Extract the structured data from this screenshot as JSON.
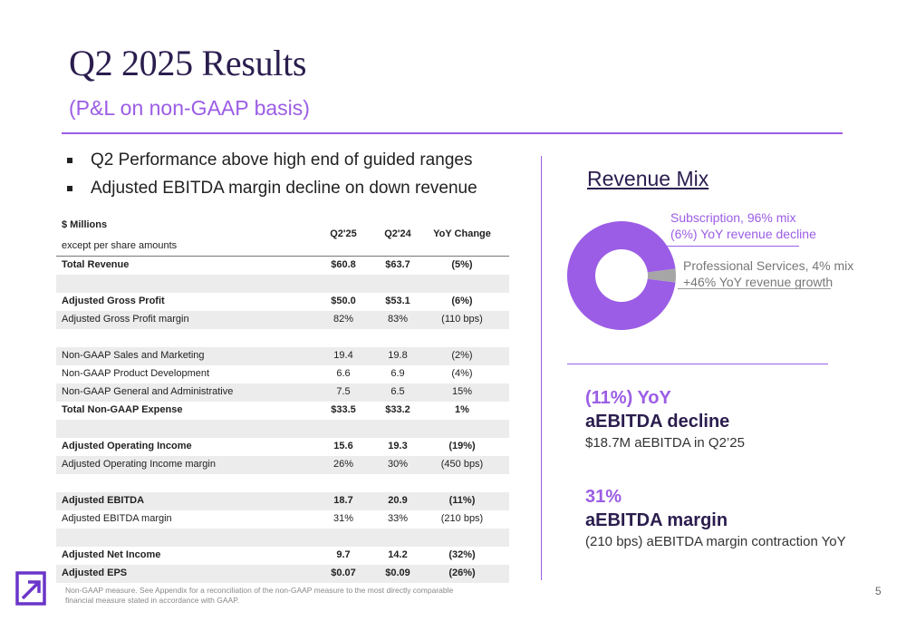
{
  "title": "Q2 2025 Results",
  "subtitle": "(P&L on non-GAAP basis)",
  "bullets": [
    "Q2 Performance above high end of guided ranges",
    "Adjusted EBITDA margin decline on down revenue"
  ],
  "table": {
    "unit_line1": "$ Millions",
    "unit_line2": "except per share amounts",
    "columns": [
      "Q2'25",
      "Q2'24",
      "YoY Change"
    ],
    "rows": [
      {
        "label": "Total Revenue",
        "q225": "$60.8",
        "q224": "$63.7",
        "yoy": "(5%)"
      },
      {
        "label": "",
        "q225": "",
        "q224": "",
        "yoy": ""
      },
      {
        "label": "Adjusted Gross Profit",
        "q225": "$50.0",
        "q224": "$53.1",
        "yoy": "(6%)"
      },
      {
        "label": "Adjusted Gross Profit margin",
        "q225": "82%",
        "q224": "83%",
        "yoy": "(110 bps)"
      },
      {
        "label": "",
        "q225": "",
        "q224": "",
        "yoy": ""
      },
      {
        "label": "Non-GAAP Sales and Marketing",
        "q225": "19.4",
        "q224": "19.8",
        "yoy": "(2%)"
      },
      {
        "label": "Non-GAAP Product Development",
        "q225": "6.6",
        "q224": "6.9",
        "yoy": "(4%)"
      },
      {
        "label": "Non-GAAP General and Administrative",
        "q225": "7.5",
        "q224": "6.5",
        "yoy": "15%"
      },
      {
        "label": "Total Non-GAAP Expense",
        "q225": "$33.5",
        "q224": "$33.2",
        "yoy": "1%"
      },
      {
        "label": "",
        "q225": "",
        "q224": "",
        "yoy": ""
      },
      {
        "label": "Adjusted Operating Income",
        "q225": "15.6",
        "q224": "19.3",
        "yoy": "(19%)"
      },
      {
        "label": "Adjusted Operating Income margin",
        "q225": "26%",
        "q224": "30%",
        "yoy": "(450 bps)"
      },
      {
        "label": "",
        "q225": "",
        "q224": "",
        "yoy": ""
      },
      {
        "label": "Adjusted EBITDA",
        "q225": "18.7",
        "q224": "20.9",
        "yoy": "(11%)"
      },
      {
        "label": "Adjusted EBITDA margin",
        "q225": "31%",
        "q224": "33%",
        "yoy": "(210 bps)"
      },
      {
        "label": "",
        "q225": "",
        "q224": "",
        "yoy": ""
      },
      {
        "label": "Adjusted Net Income",
        "q225": "9.7",
        "q224": "14.2",
        "yoy": "(32%)"
      },
      {
        "label": "Adjusted EPS",
        "q225": "$0.07",
        "q224": "$0.09",
        "yoy": "(26%)"
      }
    ]
  },
  "revenue_mix": {
    "title": "Revenue Mix",
    "subscription": {
      "line1": "Subscription, 96% mix",
      "line2": "(6%) YoY revenue decline",
      "percent": 96,
      "color": "#9b5de5"
    },
    "professional_services": {
      "line1": "Professional Services, 4% mix",
      "line2": "+46% YoY revenue growth",
      "percent": 4,
      "color": "#a6a6a6"
    }
  },
  "kpis": [
    {
      "accent": "(11%) YoY",
      "main": "aEBITDA decline",
      "desc": "$18.7M aEBITDA in Q2’25"
    },
    {
      "accent": "31%",
      "main": "aEBITDA margin",
      "desc": "(210 bps) aEBITDA margin contraction YoY"
    }
  ],
  "footnote": "Non-GAAP measure. See Appendix for a reconciliation of the non-GAAP measure to the most directly comparable financial measure stated in accordance with GAAP.",
  "page_number": "5",
  "colors": {
    "accent": "#9b5de5",
    "heading": "#2b1d4e",
    "row_shade": "#ececec"
  },
  "logo_icon": "arrow-up-right-icon"
}
